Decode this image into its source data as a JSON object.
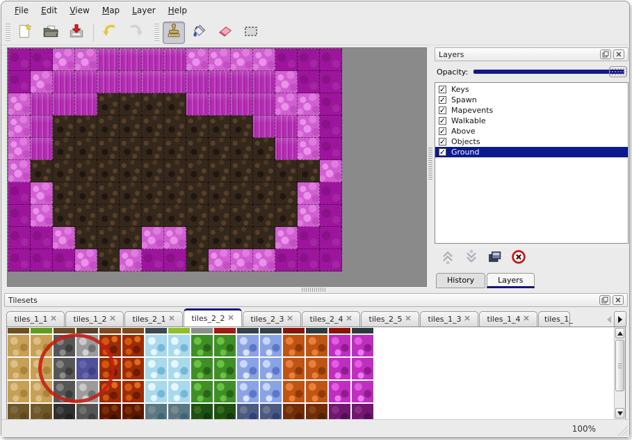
{
  "menu": {
    "items": [
      "File",
      "Edit",
      "View",
      "Map",
      "Layer",
      "Help"
    ]
  },
  "toolbar": {
    "buttons": [
      {
        "label": "new",
        "icon": "new-file-icon"
      },
      {
        "label": "open",
        "icon": "open-folder-icon"
      },
      {
        "label": "save",
        "icon": "save-icon"
      },
      {
        "label": "sep",
        "icon": "separator"
      },
      {
        "label": "undo",
        "icon": "undo-icon"
      },
      {
        "label": "redo",
        "icon": "redo-icon",
        "disabled": true
      },
      {
        "label": "grip",
        "icon": "grip"
      },
      {
        "label": "stamp-tool",
        "icon": "stamp-icon",
        "active": true
      },
      {
        "label": "fill-tool",
        "icon": "fill-icon"
      },
      {
        "label": "eraser-tool",
        "icon": "eraser-icon"
      },
      {
        "label": "select-tool",
        "icon": "select-icon"
      }
    ]
  },
  "map_view": {
    "tile_size": 32,
    "columns": 15,
    "rows": 10,
    "legend": {
      "P": "pale-magenta-scales",
      "M": "magenta-pillars",
      "D": "dark-magenta",
      "B": "brown-rock"
    },
    "grid": [
      "DDPPMMMMPPPPDDD",
      "DPMMMMMMMMMMPDD",
      "PMMMBBBBMMMMPPD",
      "PMBBBBBBBBBMMPD",
      "PMBBBBBBBBBBMPD",
      "PBBBBBBBBBBBBBP",
      "DPBBBBBBBBBBBPD",
      "DPBBBBBBBBBBBPD",
      "DDPBBBPPBBBBPDD",
      "DDDPBPDDBPPPDDD"
    ],
    "tile_colors": {
      "P": "#d15fd1",
      "M": "#b52cb5",
      "D": "#9d159d",
      "B": "#35271b"
    }
  },
  "layers_panel": {
    "title": "Layers",
    "opacity_label": "Opacity:",
    "opacity_percent": 100,
    "layers": [
      {
        "label": "Keys",
        "checked": true
      },
      {
        "label": "Spawn",
        "checked": true
      },
      {
        "label": "Mapevents",
        "checked": true
      },
      {
        "label": "Walkable",
        "checked": true
      },
      {
        "label": "Above",
        "checked": true
      },
      {
        "label": "Objects",
        "checked": true
      },
      {
        "label": "Ground",
        "checked": true,
        "selected": true
      }
    ],
    "buttons": [
      {
        "name": "move-layer-up",
        "icon": "chevrons-up-icon",
        "disabled": true
      },
      {
        "name": "move-layer-down",
        "icon": "chevrons-down-icon",
        "disabled": true
      },
      {
        "name": "duplicate-layer",
        "icon": "duplicate-icon"
      },
      {
        "name": "delete-layer",
        "icon": "delete-icon"
      }
    ],
    "tabs": [
      {
        "label": "History",
        "active": false
      },
      {
        "label": "Layers",
        "active": true
      }
    ],
    "selected_color": "#0b1b8e"
  },
  "tilesets_panel": {
    "title": "Tilesets",
    "tabs": [
      {
        "label": "tiles_1_1"
      },
      {
        "label": "tiles_1_2"
      },
      {
        "label": "tiles_2_1"
      },
      {
        "label": "tiles_2_2",
        "active": true
      },
      {
        "label": "tiles_2_3"
      },
      {
        "label": "tiles_2_4"
      },
      {
        "label": "tiles_2_5"
      },
      {
        "label": "tiles_1_3"
      },
      {
        "label": "tiles_1_4"
      },
      {
        "label": "tiles_1_",
        "clipped": true
      }
    ],
    "columns": [
      {
        "name": "sand-rock",
        "type": "tan",
        "strip": "#6e4f21"
      },
      {
        "name": "sand-rock-grass",
        "type": "tan",
        "strip": "#5f9b1e"
      },
      {
        "name": "dark-stone",
        "type": "dstone",
        "strip": "#6b4a26"
      },
      {
        "name": "light-stone",
        "type": "lstone",
        "strip": "#58422a"
      },
      {
        "name": "lava-rock",
        "type": "lava",
        "strip": "#7c4a1c"
      },
      {
        "name": "lava-rock",
        "type": "lava",
        "strip": "#7c4a1c"
      },
      {
        "name": "ice",
        "type": "ice",
        "strip": "#3c4a50"
      },
      {
        "name": "ice-grass",
        "type": "ice",
        "strip": "#8fbf2f"
      },
      {
        "name": "leaves",
        "type": "leaf",
        "strip": "#8a8f8a"
      },
      {
        "name": "leaves-red",
        "type": "leaf",
        "strip": "#a01a10"
      },
      {
        "name": "crystal",
        "type": "crys",
        "strip": "#35404a"
      },
      {
        "name": "crystal",
        "type": "crys",
        "strip": "#35404a"
      },
      {
        "name": "ember-rock",
        "type": "ember",
        "strip": "#8a1208"
      },
      {
        "name": "ember-rock",
        "type": "ember",
        "strip": "#2c3a3e"
      },
      {
        "name": "amethyst",
        "type": "ameth",
        "strip": "#8a1208"
      },
      {
        "name": "amethyst",
        "type": "ameth",
        "strip": "#2c3a3e"
      }
    ],
    "selected_tile": {
      "col": 3,
      "row": 2
    },
    "annotation": "red-circle"
  },
  "status_bar": {
    "zoom": "100%"
  }
}
